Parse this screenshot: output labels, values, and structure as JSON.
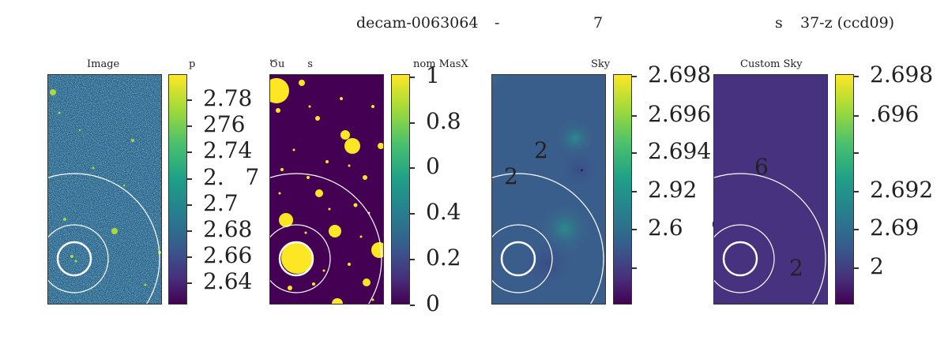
{
  "figure": {
    "title_parts": [
      "decam-0063064",
      "-",
      "7",
      "s",
      "37-z (ccd09)"
    ]
  },
  "panels": [
    {
      "title": "Image",
      "cbar_title": "p",
      "ticks": [
        "2.78",
        "276",
        "2.74",
        "2.   7",
        "2.7",
        "2.68",
        "2.66",
        "2.64"
      ]
    },
    {
      "title": "Ծu       s",
      "cbar_title": "nom MasX",
      "ticks": [
        "1",
        "0.8",
        "0",
        "0.4",
        "0.2",
        "0"
      ]
    },
    {
      "title": "Sky",
      "ticks": [
        "2.698",
        "2.696",
        "2.694",
        "2.92",
        "2.6    9",
        ""
      ],
      "overlay": [
        "2",
        "2",
        "."
      ]
    },
    {
      "title": "Custom Sky",
      "ticks": [
        "2.698",
        ".696",
        "",
        "2.692",
        "2.69",
        "2"
      ],
      "overlay": [
        "6",
        "2"
      ]
    }
  ],
  "colors": {
    "viridis_low": "#440154",
    "viridis_mid": "#21918c",
    "viridis_high": "#fde725",
    "image_bg": "#2f6b8e",
    "sky_panel_bg": "#3b5e8c",
    "custom_sky_bg": "#46327e",
    "annulus_stroke": "#ffffff"
  }
}
